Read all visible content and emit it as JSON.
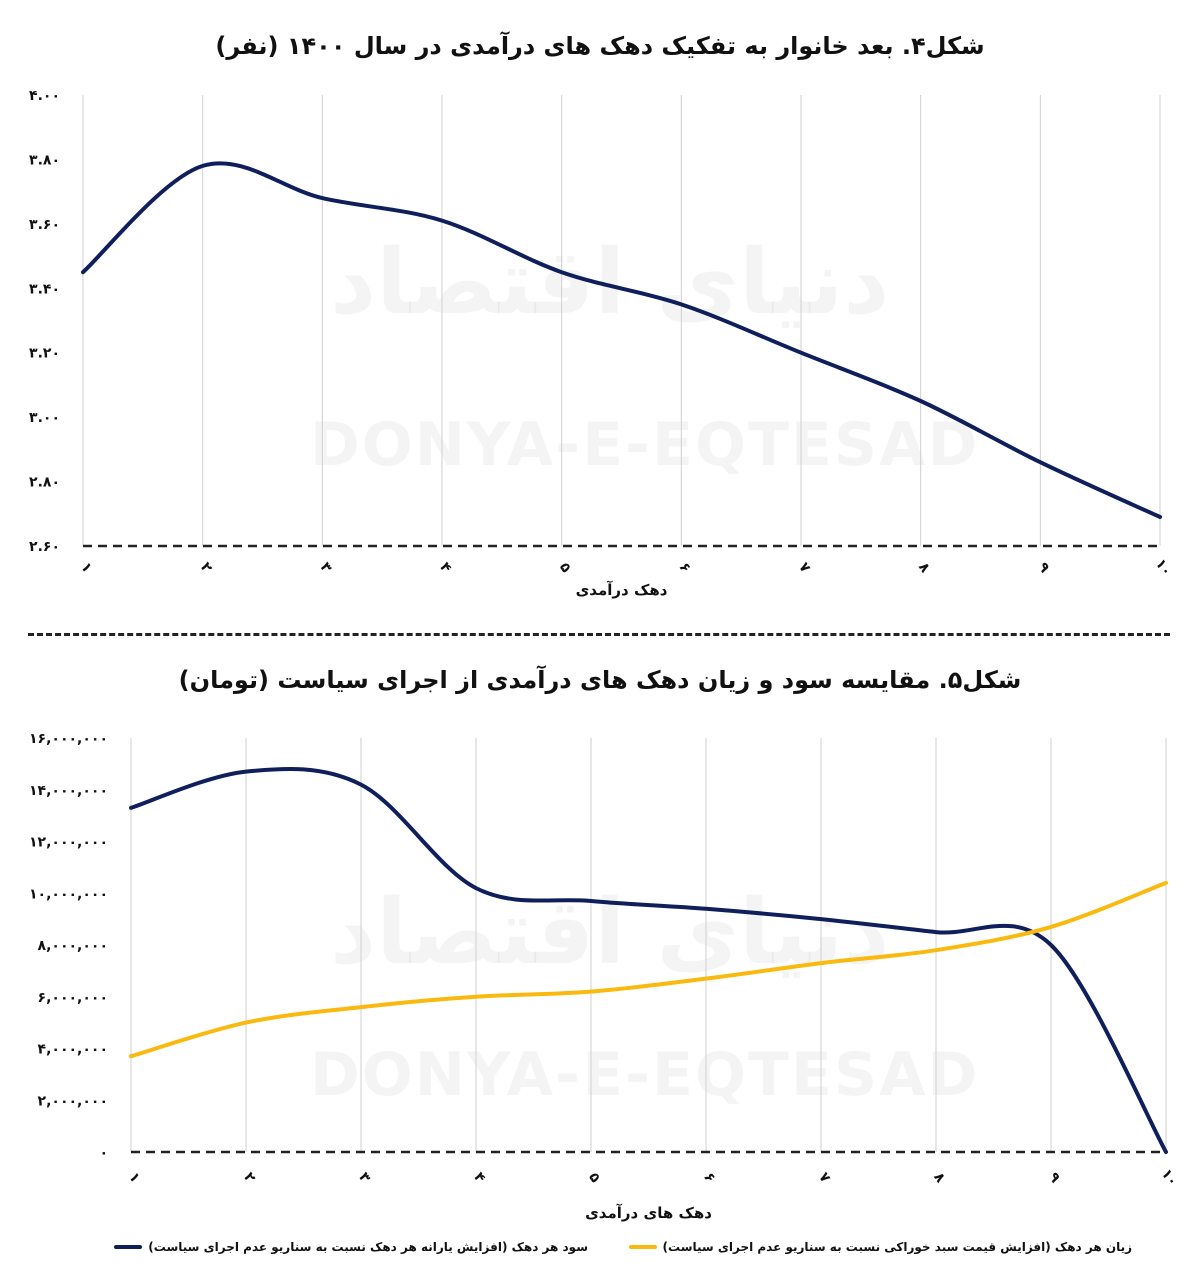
{
  "chart_data": [
    {
      "type": "line",
      "title": "شکل۴. بعد خانوار به تفکیک دهک های درآمدی در سال ۱۴۰۰ (نفر)",
      "xlabel": "دهک درآمدی",
      "categories": [
        "۱",
        "۲",
        "۳",
        "۴",
        "۵",
        "۶",
        "۷",
        "۸",
        "۹",
        "۱۰"
      ],
      "y_tick_labels": [
        "۲.۶۰",
        "۲.۸۰",
        "۳.۰۰",
        "۳.۲۰",
        "۳.۴۰",
        "۳.۶۰",
        "۳.۸۰",
        "۴.۰۰"
      ],
      "ylim": [
        2.6,
        4.0
      ],
      "grid": "vertical",
      "series": [
        {
          "color": "#0f1f5c",
          "values": [
            3.45,
            3.78,
            3.68,
            3.61,
            3.45,
            3.35,
            3.2,
            3.05,
            2.86,
            2.69
          ]
        }
      ]
    },
    {
      "type": "line",
      "title": "شکل۵. مقایسه سود و زیان دهک های درآمدی از اجرای سیاست (تومان)",
      "xlabel": "دهک های درآمدی",
      "categories": [
        "۱",
        "۲",
        "۳",
        "۴",
        "۵",
        "۶",
        "۷",
        "۸",
        "۹",
        "۱۰"
      ],
      "y_tick_labels": [
        "۰",
        "۲,۰۰۰,۰۰۰",
        "۴,۰۰۰,۰۰۰",
        "۶,۰۰۰,۰۰۰",
        "۸,۰۰۰,۰۰۰",
        "۱۰,۰۰۰,۰۰۰",
        "۱۲,۰۰۰,۰۰۰",
        "۱۴,۰۰۰,۰۰۰",
        "۱۶,۰۰۰,۰۰۰"
      ],
      "ylim": [
        0,
        16000000
      ],
      "grid": "vertical",
      "legend_position": "bottom",
      "series": [
        {
          "name": "سود هر دهک (افزایش یارانه هر دهک نسبت به سناریو عدم اجرای سیاست)",
          "color": "#0f1f5c",
          "values": [
            13300000,
            14700000,
            14200000,
            10200000,
            9700000,
            9400000,
            9000000,
            8500000,
            8000000,
            0
          ]
        },
        {
          "name": "زیان هر دهک (افزایش قیمت سبد خوراکی نسبت به سناریو عدم اجرای سیاست)",
          "color": "#f9b90e",
          "values": [
            3700000,
            5000000,
            5600000,
            6000000,
            6200000,
            6700000,
            7300000,
            7800000,
            8700000,
            10400000
          ]
        }
      ]
    }
  ],
  "watermark": {
    "latin": "DONYA-E-EQTESAD",
    "persian": "دنیای اقتصاد"
  }
}
